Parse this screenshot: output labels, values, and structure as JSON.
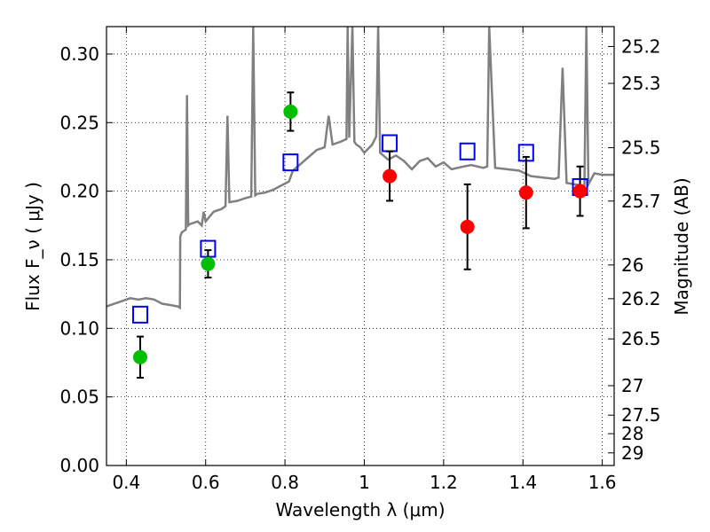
{
  "chart_data": {
    "type": "scatter",
    "title": "",
    "xlabel": "Wavelength  λ (μm)",
    "ylabel": "Flux  F_ν  ( μJy )",
    "ylabel2": "Magnitude (AB)",
    "xlim": [
      0.35,
      1.63
    ],
    "ylim": [
      0.0,
      0.32
    ],
    "grid": true,
    "x_ticks": [
      0.4,
      0.6,
      0.8,
      1.0,
      1.2,
      1.4,
      1.6
    ],
    "x_tick_labels": [
      "0.4",
      "0.6",
      "0.8",
      "1",
      "1.2",
      "1.4",
      "1.6"
    ],
    "y_ticks": [
      0.0,
      0.05,
      0.1,
      0.15,
      0.2,
      0.25,
      0.3
    ],
    "y_tick_labels": [
      "0.00",
      "0.05",
      "0.10",
      "0.15",
      "0.20",
      "0.25",
      "0.30"
    ],
    "mag_ticks": [
      {
        "label": "25.2",
        "flux": 0.3055
      },
      {
        "label": "25.3",
        "flux": 0.2786
      },
      {
        "label": "25.5",
        "flux": 0.2317
      },
      {
        "label": "25.7",
        "flux": 0.1928
      },
      {
        "label": "26",
        "flux": 0.1462
      },
      {
        "label": "26.2",
        "flux": 0.1216
      },
      {
        "label": "26.5",
        "flux": 0.0923
      },
      {
        "label": "27",
        "flux": 0.0582
      },
      {
        "label": "27.5",
        "flux": 0.0367
      },
      {
        "label": "28",
        "flux": 0.0232
      },
      {
        "label": "29",
        "flux": 0.0092
      }
    ],
    "colors": {
      "green": "#00bf00",
      "red": "#ff0000",
      "model_box": "#0000ff",
      "spectrum": "#808080",
      "errorbar": "#000000"
    },
    "series": [
      {
        "type": "scatter",
        "color": "#00bf00",
        "points": [
          {
            "x": 0.435,
            "y": 0.079,
            "err": 0.015
          },
          {
            "x": 0.606,
            "y": 0.147,
            "err": 0.01
          },
          {
            "x": 0.814,
            "y": 0.258,
            "err": 0.014
          }
        ]
      },
      {
        "type": "scatter",
        "color": "#ff0000",
        "points": [
          {
            "x": 1.064,
            "y": 0.211,
            "err": 0.018
          },
          {
            "x": 1.26,
            "y": 0.174,
            "err": 0.031
          },
          {
            "x": 1.408,
            "y": 0.199,
            "err": 0.026
          },
          {
            "x": 1.544,
            "y": 0.2,
            "err": 0.018
          }
        ]
      },
      {
        "type": "scatter",
        "marker": "open-square",
        "color": "#0000ff",
        "points": [
          {
            "x": 0.435,
            "y": 0.11
          },
          {
            "x": 0.606,
            "y": 0.158
          },
          {
            "x": 0.814,
            "y": 0.221
          },
          {
            "x": 1.064,
            "y": 0.235
          },
          {
            "x": 1.26,
            "y": 0.229
          },
          {
            "x": 1.408,
            "y": 0.228
          },
          {
            "x": 1.544,
            "y": 0.203
          }
        ]
      },
      {
        "type": "line",
        "color": "#808080",
        "x": [
          0.35,
          0.37,
          0.39,
          0.41,
          0.43,
          0.45,
          0.47,
          0.49,
          0.51,
          0.53,
          0.535,
          0.536,
          0.54,
          0.55,
          0.553,
          0.556,
          0.56,
          0.58,
          0.59,
          0.595,
          0.6,
          0.62,
          0.64,
          0.65,
          0.655,
          0.66,
          0.68,
          0.7,
          0.715,
          0.72,
          0.725,
          0.73,
          0.75,
          0.77,
          0.79,
          0.81,
          0.82,
          0.84,
          0.86,
          0.88,
          0.9,
          0.91,
          0.92,
          0.94,
          0.955,
          0.958,
          0.962,
          0.97,
          0.975,
          0.98,
          0.99,
          1.0,
          1.02,
          1.03,
          1.035,
          1.04,
          1.06,
          1.08,
          1.1,
          1.12,
          1.14,
          1.16,
          1.18,
          1.2,
          1.22,
          1.25,
          1.27,
          1.3,
          1.31,
          1.315,
          1.33,
          1.36,
          1.39,
          1.42,
          1.45,
          1.48,
          1.49,
          1.5,
          1.51,
          1.53,
          1.555,
          1.56,
          1.565,
          1.58,
          1.6,
          1.63
        ],
        "y": [
          0.116,
          0.118,
          0.12,
          0.122,
          0.121,
          0.122,
          0.121,
          0.118,
          0.117,
          0.116,
          0.115,
          0.167,
          0.17,
          0.172,
          0.27,
          0.175,
          0.176,
          0.178,
          0.175,
          0.185,
          0.178,
          0.185,
          0.187,
          0.189,
          0.255,
          0.192,
          0.193,
          0.195,
          0.196,
          0.32,
          0.197,
          0.198,
          0.199,
          0.201,
          0.204,
          0.207,
          0.215,
          0.22,
          0.225,
          0.23,
          0.232,
          0.255,
          0.234,
          0.236,
          0.238,
          0.32,
          0.239,
          0.32,
          0.236,
          0.234,
          0.232,
          0.228,
          0.234,
          0.24,
          0.32,
          0.228,
          0.223,
          0.226,
          0.222,
          0.216,
          0.222,
          0.224,
          0.218,
          0.221,
          0.216,
          0.218,
          0.219,
          0.217,
          0.218,
          0.32,
          0.217,
          0.216,
          0.215,
          0.211,
          0.21,
          0.209,
          0.21,
          0.29,
          0.206,
          0.205,
          0.204,
          0.32,
          0.205,
          0.213,
          0.212,
          0.212
        ]
      }
    ]
  }
}
